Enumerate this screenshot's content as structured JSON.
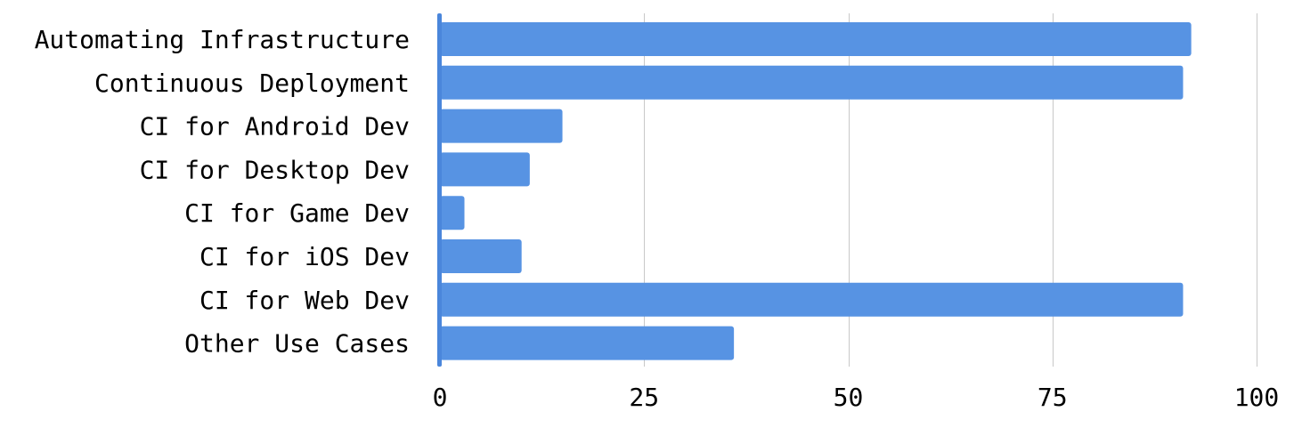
{
  "chart_data": {
    "type": "bar",
    "orientation": "horizontal",
    "categories": [
      "Automating Infrastructure",
      "Continuous Deployment",
      "CI for Android Dev",
      "CI for Desktop Dev",
      "CI for Game Dev",
      "CI for iOS Dev",
      "CI for Web Dev",
      "Other Use Cases"
    ],
    "values": [
      92,
      91,
      15,
      11,
      3,
      10,
      91,
      36
    ],
    "xlim": [
      0,
      100
    ],
    "xticks": [
      "0",
      "25",
      "50",
      "75",
      "100"
    ],
    "grid": true,
    "legend": "none",
    "colors": {
      "bar": "#5793e3",
      "axis": "#4a86db",
      "grid": "#c8c8c8"
    }
  }
}
